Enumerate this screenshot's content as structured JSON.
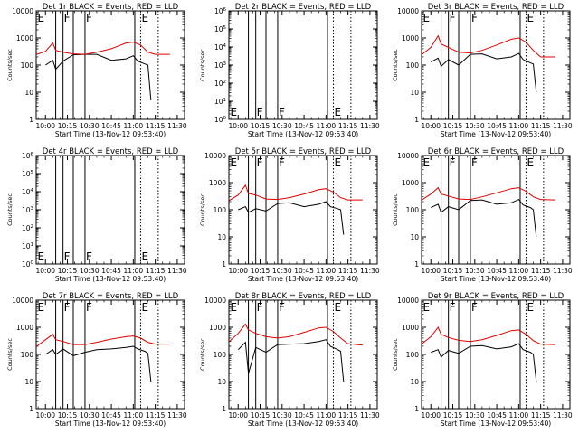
{
  "figure": {
    "colors": {
      "events": "#000000",
      "lld": "#e00000",
      "axis": "#000000"
    }
  },
  "chart_data": [
    {
      "type": "line",
      "log_y": true,
      "title": "Det 1r BLACK = Events, RED = LLD",
      "xlabel": "Start Time (13-Nov-12 09:53:40)",
      "ylabel": "Counts/sec",
      "xlim": [
        "09:53:40",
        "11:35"
      ],
      "ylim": [
        1,
        10000
      ],
      "x_ticks": [
        "10:00",
        "10:15",
        "10:30",
        "10:45",
        "11:00",
        "11:15",
        "11:30"
      ],
      "y_ticks": [
        "1",
        "10",
        "100",
        "1000",
        "10000"
      ],
      "markers": [
        {
          "label": "E",
          "time": "09:54"
        },
        {
          "label": "F",
          "time": "10:12"
        },
        {
          "label": "F",
          "time": "10:27"
        },
        {
          "label": "E",
          "time": "11:05"
        }
      ],
      "solid_lines": [
        "10:07",
        "10:12",
        "10:19",
        "10:27",
        "11:01"
      ],
      "dotted_lines": [
        "11:05",
        "11:17"
      ],
      "series": [
        {
          "name": "BLACK = Events",
          "x": [
            "10:00",
            "10:05",
            "10:07",
            "10:12",
            "10:19",
            "10:27",
            "10:35",
            "10:45",
            "10:55",
            "11:00",
            "11:03",
            "11:08",
            "11:10",
            "11:12"
          ],
          "y": [
            100,
            150,
            70,
            140,
            240,
            250,
            250,
            150,
            170,
            220,
            140,
            110,
            100,
            5
          ]
        },
        {
          "name": "RED = LLD",
          "x": [
            "09:54",
            "10:00",
            "10:05",
            "10:07",
            "10:12",
            "10:19",
            "10:27",
            "10:35",
            "10:45",
            "10:55",
            "11:00",
            "11:05",
            "11:10",
            "11:15",
            "11:25"
          ],
          "y": [
            250,
            320,
            650,
            350,
            300,
            260,
            250,
            300,
            400,
            650,
            700,
            550,
            300,
            250,
            250
          ]
        }
      ]
    },
    {
      "type": "line",
      "log_y": true,
      "title": "Det 2r BLACK = Events, RED = LLD",
      "xlabel": "Start Time (13-Nov-12 09:53:40)",
      "ylabel": "Counts/sec",
      "xlim": [
        "09:53:40",
        "11:35"
      ],
      "ylim": [
        1,
        1000000
      ],
      "x_ticks": [
        "10:00",
        "10:15",
        "10:30",
        "10:45",
        "11:00",
        "11:15",
        "11:30"
      ],
      "y_ticks": [
        "10^0",
        "10^1",
        "10^2",
        "10^3",
        "10^4",
        "10^5",
        "10^6"
      ],
      "markers": [
        {
          "label": "E",
          "time": "09:54"
        },
        {
          "label": "F",
          "time": "10:12"
        },
        {
          "label": "F",
          "time": "10:27"
        },
        {
          "label": "E",
          "time": "11:05"
        }
      ],
      "solid_lines": [
        "10:07",
        "10:12",
        "10:19",
        "10:27",
        "11:01"
      ],
      "dotted_lines": [
        "11:05",
        "11:17"
      ],
      "series": []
    },
    {
      "type": "line",
      "log_y": true,
      "title": "Det 3r BLACK = Events, RED = LLD",
      "xlabel": "Start Time (13-Nov-12 09:53:40)",
      "ylabel": "Counts/sec",
      "xlim": [
        "09:53:40",
        "11:35"
      ],
      "ylim": [
        1,
        10000
      ],
      "x_ticks": [
        "10:00",
        "10:15",
        "10:30",
        "10:45",
        "11:00",
        "11:15",
        "11:30"
      ],
      "y_ticks": [
        "1",
        "10",
        "100",
        "1000",
        "10000"
      ],
      "markers": [
        {
          "label": "E",
          "time": "09:54"
        },
        {
          "label": "F",
          "time": "10:12"
        },
        {
          "label": "F",
          "time": "10:27"
        },
        {
          "label": "E",
          "time": "11:05"
        }
      ],
      "solid_lines": [
        "10:07",
        "10:12",
        "10:19",
        "10:27",
        "11:01"
      ],
      "dotted_lines": [
        "11:05",
        "11:17"
      ],
      "series": [
        {
          "name": "BLACK = Events",
          "x": [
            "10:00",
            "10:05",
            "10:07",
            "10:12",
            "10:19",
            "10:27",
            "10:35",
            "10:45",
            "10:55",
            "11:00",
            "11:03",
            "11:08",
            "11:10",
            "11:12"
          ],
          "y": [
            130,
            180,
            90,
            160,
            100,
            250,
            260,
            170,
            200,
            270,
            160,
            120,
            110,
            10
          ]
        },
        {
          "name": "RED = LLD",
          "x": [
            "09:54",
            "10:00",
            "10:05",
            "10:07",
            "10:12",
            "10:19",
            "10:27",
            "10:35",
            "10:45",
            "10:55",
            "11:00",
            "11:05",
            "11:10",
            "11:15",
            "11:25"
          ],
          "y": [
            250,
            450,
            1200,
            600,
            450,
            300,
            280,
            350,
            550,
            900,
            1000,
            700,
            350,
            200,
            200
          ]
        }
      ]
    },
    {
      "type": "line",
      "log_y": true,
      "title": "Det 4r BLACK = Events, RED = LLD",
      "xlabel": "Start Time (13-Nov-12 09:53:40)",
      "ylabel": "Counts/sec",
      "xlim": [
        "09:53:40",
        "11:35"
      ],
      "ylim": [
        1,
        1000000
      ],
      "x_ticks": [
        "10:00",
        "10:15",
        "10:30",
        "10:45",
        "11:00",
        "11:15",
        "11:30"
      ],
      "y_ticks": [
        "10^0",
        "10^1",
        "10^2",
        "10^3",
        "10^4",
        "10^5",
        "10^6"
      ],
      "markers": [
        {
          "label": "E",
          "time": "09:54"
        },
        {
          "label": "F",
          "time": "10:12"
        },
        {
          "label": "F",
          "time": "10:27"
        },
        {
          "label": "E",
          "time": "11:05"
        }
      ],
      "solid_lines": [
        "10:07",
        "10:12",
        "10:19",
        "10:27",
        "11:01"
      ],
      "dotted_lines": [
        "11:05",
        "11:17"
      ],
      "series": []
    },
    {
      "type": "line",
      "log_y": true,
      "title": "Det 5r BLACK = Events, RED = LLD",
      "xlabel": "Start Time (13-Nov-12 09:53:40)",
      "ylabel": "Counts/sec",
      "xlim": [
        "09:53:40",
        "11:35"
      ],
      "ylim": [
        1,
        10000
      ],
      "x_ticks": [
        "10:00",
        "10:15",
        "10:30",
        "10:45",
        "11:00",
        "11:15",
        "11:30"
      ],
      "y_ticks": [
        "1",
        "10",
        "100",
        "1000",
        "10000"
      ],
      "markers": [
        {
          "label": "E",
          "time": "09:54"
        },
        {
          "label": "F",
          "time": "10:12"
        },
        {
          "label": "F",
          "time": "10:27"
        },
        {
          "label": "E",
          "time": "11:05"
        }
      ],
      "solid_lines": [
        "10:07",
        "10:12",
        "10:19",
        "10:27",
        "11:01"
      ],
      "dotted_lines": [
        "11:05",
        "11:17"
      ],
      "series": [
        {
          "name": "BLACK = Events",
          "x": [
            "10:00",
            "10:05",
            "10:07",
            "10:12",
            "10:19",
            "10:27",
            "10:35",
            "10:45",
            "10:55",
            "11:00",
            "11:03",
            "11:08",
            "11:10",
            "11:12"
          ],
          "y": [
            100,
            130,
            80,
            110,
            90,
            170,
            180,
            130,
            160,
            200,
            130,
            110,
            100,
            12
          ]
        },
        {
          "name": "RED = LLD",
          "x": [
            "09:54",
            "10:00",
            "10:05",
            "10:07",
            "10:12",
            "10:19",
            "10:27",
            "10:35",
            "10:45",
            "10:55",
            "11:00",
            "11:05",
            "11:10",
            "11:15",
            "11:25"
          ],
          "y": [
            220,
            350,
            800,
            400,
            350,
            250,
            240,
            280,
            380,
            550,
            600,
            450,
            280,
            230,
            230
          ]
        }
      ]
    },
    {
      "type": "line",
      "log_y": true,
      "title": "Det 6r BLACK = Events, RED = LLD",
      "xlabel": "Start Time (13-Nov-12 09:53:40)",
      "ylabel": "Counts/sec",
      "xlim": [
        "09:53:40",
        "11:35"
      ],
      "ylim": [
        1,
        10000
      ],
      "x_ticks": [
        "10:00",
        "10:15",
        "10:30",
        "10:45",
        "11:00",
        "11:15",
        "11:30"
      ],
      "y_ticks": [
        "1",
        "10",
        "100",
        "1000",
        "10000"
      ],
      "markers": [
        {
          "label": "E",
          "time": "09:54"
        },
        {
          "label": "F",
          "time": "10:12"
        },
        {
          "label": "F",
          "time": "10:27"
        },
        {
          "label": "E",
          "time": "11:05"
        }
      ],
      "solid_lines": [
        "10:07",
        "10:12",
        "10:19",
        "10:27",
        "11:01"
      ],
      "dotted_lines": [
        "11:05",
        "11:17"
      ],
      "series": [
        {
          "name": "BLACK = Events",
          "x": [
            "10:00",
            "10:05",
            "10:07",
            "10:12",
            "10:19",
            "10:27",
            "10:35",
            "10:45",
            "10:55",
            "11:00",
            "11:03",
            "11:08",
            "11:10",
            "11:12"
          ],
          "y": [
            120,
            160,
            80,
            130,
            100,
            220,
            230,
            160,
            180,
            240,
            150,
            120,
            100,
            10
          ]
        },
        {
          "name": "RED = LLD",
          "x": [
            "09:54",
            "10:00",
            "10:05",
            "10:07",
            "10:12",
            "10:19",
            "10:27",
            "10:35",
            "10:45",
            "10:55",
            "11:00",
            "11:05",
            "11:10",
            "11:15",
            "11:25"
          ],
          "y": [
            230,
            380,
            650,
            380,
            320,
            250,
            240,
            300,
            420,
            600,
            650,
            480,
            300,
            240,
            230
          ]
        }
      ]
    },
    {
      "type": "line",
      "log_y": true,
      "title": "Det 7r BLACK = Events, RED = LLD",
      "xlabel": "Start Time (13-Nov-12 09:53:40)",
      "ylabel": "Counts/sec",
      "xlim": [
        "09:53:40",
        "11:35"
      ],
      "ylim": [
        1,
        10000
      ],
      "x_ticks": [
        "10:00",
        "10:15",
        "10:30",
        "10:45",
        "11:00",
        "11:15",
        "11:30"
      ],
      "y_ticks": [
        "1",
        "10",
        "100",
        "1000",
        "10000"
      ],
      "markers": [
        {
          "label": "E",
          "time": "09:54"
        },
        {
          "label": "F",
          "time": "10:12"
        },
        {
          "label": "F",
          "time": "10:27"
        },
        {
          "label": "E",
          "time": "11:05"
        }
      ],
      "solid_lines": [
        "10:07",
        "10:12",
        "10:19",
        "10:27",
        "11:01"
      ],
      "dotted_lines": [
        "11:05",
        "11:17"
      ],
      "series": [
        {
          "name": "BLACK = Events",
          "x": [
            "10:00",
            "10:05",
            "10:07",
            "10:12",
            "10:19",
            "10:27",
            "10:35",
            "10:45",
            "10:55",
            "11:00",
            "11:03",
            "11:08",
            "11:10",
            "11:12"
          ],
          "y": [
            100,
            150,
            100,
            160,
            90,
            120,
            150,
            160,
            180,
            200,
            160,
            130,
            110,
            10
          ]
        },
        {
          "name": "RED = LLD",
          "x": [
            "09:54",
            "10:00",
            "10:05",
            "10:07",
            "10:12",
            "10:19",
            "10:27",
            "10:35",
            "10:45",
            "10:55",
            "11:00",
            "11:05",
            "11:10",
            "11:15",
            "11:25"
          ],
          "y": [
            200,
            350,
            550,
            350,
            300,
            230,
            230,
            280,
            370,
            450,
            480,
            400,
            280,
            240,
            240
          ]
        }
      ]
    },
    {
      "type": "line",
      "log_y": true,
      "title": "Det 8r BLACK = Events, RED = LLD",
      "xlabel": "Start Time (13-Nov-12 09:53:40)",
      "ylabel": "Counts/sec",
      "xlim": [
        "09:53:40",
        "11:35"
      ],
      "ylim": [
        1,
        10000
      ],
      "x_ticks": [
        "10:00",
        "10:15",
        "10:30",
        "10:45",
        "11:00",
        "11:15",
        "11:30"
      ],
      "y_ticks": [
        "1",
        "10",
        "100",
        "1000",
        "10000"
      ],
      "markers": [
        {
          "label": "E",
          "time": "09:54"
        },
        {
          "label": "F",
          "time": "10:12"
        },
        {
          "label": "F",
          "time": "10:27"
        },
        {
          "label": "E",
          "time": "11:05"
        }
      ],
      "solid_lines": [
        "10:07",
        "10:12",
        "10:19",
        "10:27",
        "11:01"
      ],
      "dotted_lines": [
        "11:05",
        "11:17"
      ],
      "series": [
        {
          "name": "BLACK = Events",
          "x": [
            "10:00",
            "10:05",
            "10:07",
            "10:12",
            "10:19",
            "10:27",
            "10:35",
            "10:45",
            "10:55",
            "11:00",
            "11:03",
            "11:08",
            "11:10",
            "11:12"
          ],
          "y": [
            150,
            280,
            20,
            180,
            120,
            230,
            240,
            250,
            300,
            350,
            200,
            150,
            130,
            10
          ]
        },
        {
          "name": "RED = LLD",
          "x": [
            "09:54",
            "10:00",
            "10:05",
            "10:07",
            "10:12",
            "10:19",
            "10:27",
            "10:35",
            "10:45",
            "10:55",
            "11:00",
            "11:05",
            "11:10",
            "11:15",
            "11:25"
          ],
          "y": [
            300,
            600,
            1300,
            800,
            600,
            450,
            400,
            450,
            650,
            950,
            1000,
            700,
            400,
            250,
            220
          ]
        }
      ]
    },
    {
      "type": "line",
      "log_y": true,
      "title": "Det 9r BLACK = Events, RED = LLD",
      "xlabel": "Start Time (13-Nov-12 09:53:40)",
      "ylabel": "Counts/sec",
      "xlim": [
        "09:53:40",
        "11:35"
      ],
      "ylim": [
        1,
        10000
      ],
      "x_ticks": [
        "10:00",
        "10:15",
        "10:30",
        "10:45",
        "11:00",
        "11:15",
        "11:30"
      ],
      "y_ticks": [
        "1",
        "10",
        "100",
        "1000",
        "10000"
      ],
      "markers": [
        {
          "label": "E",
          "time": "09:54"
        },
        {
          "label": "F",
          "time": "10:12"
        },
        {
          "label": "F",
          "time": "10:27"
        },
        {
          "label": "E",
          "time": "11:05"
        }
      ],
      "solid_lines": [
        "10:07",
        "10:12",
        "10:19",
        "10:27",
        "11:01"
      ],
      "dotted_lines": [
        "11:05",
        "11:17"
      ],
      "series": [
        {
          "name": "BLACK = Events",
          "x": [
            "10:00",
            "10:05",
            "10:07",
            "10:12",
            "10:19",
            "10:27",
            "10:35",
            "10:45",
            "10:55",
            "11:00",
            "11:03",
            "11:08",
            "11:10",
            "11:12"
          ],
          "y": [
            120,
            150,
            80,
            140,
            110,
            200,
            210,
            160,
            190,
            250,
            150,
            120,
            100,
            10
          ]
        },
        {
          "name": "RED = LLD",
          "x": [
            "09:54",
            "10:00",
            "10:05",
            "10:07",
            "10:12",
            "10:19",
            "10:27",
            "10:35",
            "10:45",
            "10:55",
            "11:00",
            "11:05",
            "11:10",
            "11:15",
            "11:25"
          ],
          "y": [
            250,
            450,
            1000,
            550,
            420,
            330,
            300,
            350,
            500,
            750,
            800,
            550,
            320,
            240,
            230
          ]
        }
      ]
    }
  ]
}
